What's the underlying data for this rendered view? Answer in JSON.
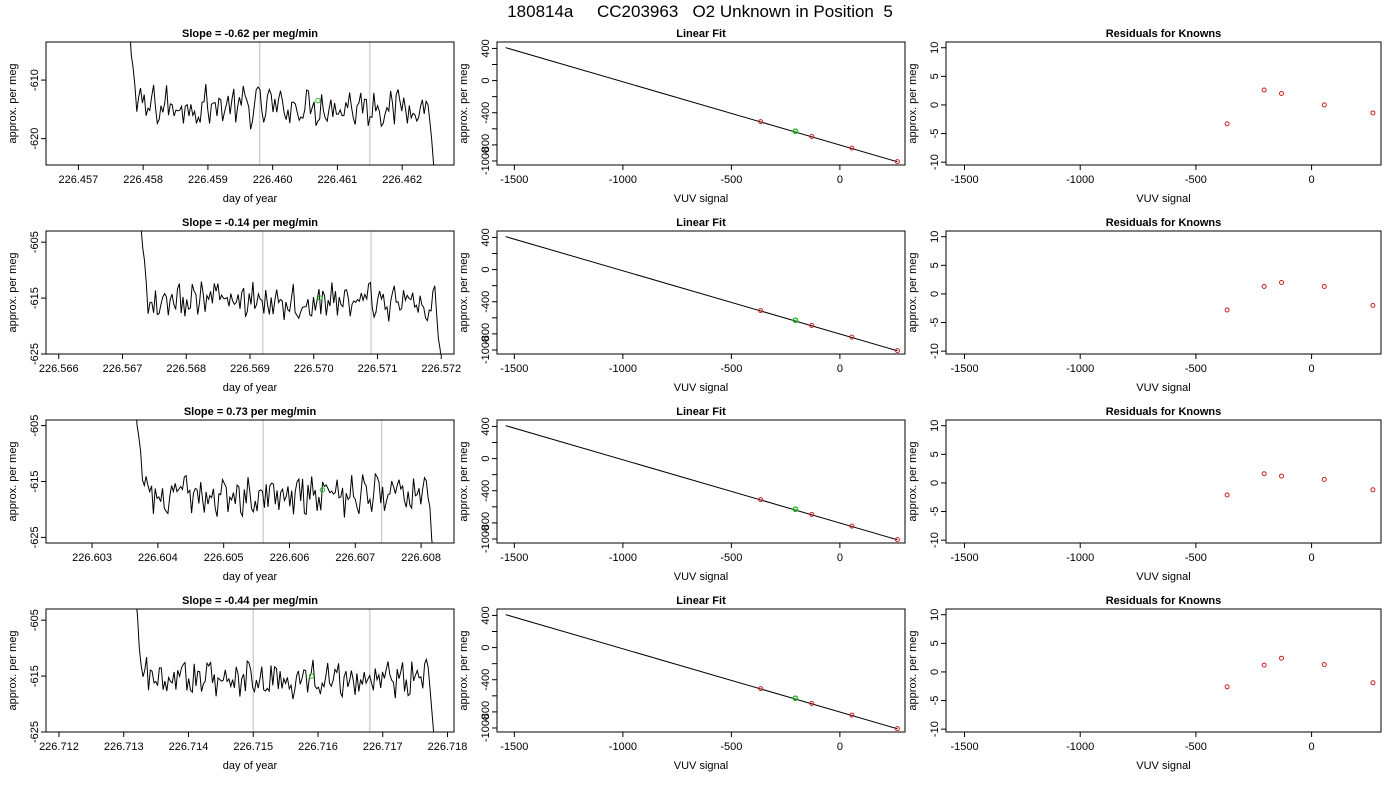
{
  "page_title": "180814a     CC203963   O2 Unknown in Position  5",
  "colors": {
    "trace": "#000000",
    "marker_line": "#c8c8c8",
    "unknown_point": "#22bb22",
    "known_point": "#cc2222",
    "fit_line": "#000000"
  },
  "chart_data": [
    {
      "type": "line",
      "title": "Slope =  -0.62  per meg/min",
      "xlabel": "day of year",
      "ylabel": "approx. per meg",
      "xlim": [
        226.4565,
        226.4628
      ],
      "ylim": [
        -624.5,
        -603.5
      ],
      "x_ticks": [
        226.457,
        226.458,
        226.459,
        226.46,
        226.461,
        226.462
      ],
      "x_tick_labels": [
        "226.457",
        "226.458",
        "226.459",
        "226.460",
        "226.461",
        "226.462"
      ],
      "y_ticks": [
        -610,
        -620
      ],
      "y_tick_labels": [
        "-610",
        "-620"
      ],
      "marker_lines": [
        226.4598,
        226.4615
      ],
      "trace_x_range": [
        226.4577,
        226.4626
      ],
      "trace_level": -614.5,
      "unknown_point": {
        "x": 226.4607,
        "y": -613.5
      }
    },
    {
      "type": "scatter",
      "title": "Linear Fit",
      "xlabel": "VUV signal",
      "ylabel": "approx. per meg",
      "xlim": [
        -1580,
        300
      ],
      "ylim": [
        -1050,
        480
      ],
      "x_ticks": [
        -1500,
        -1000,
        -500,
        0
      ],
      "x_tick_labels": [
        "-1500",
        "-1000",
        "-500",
        "0"
      ],
      "y_ticks": [
        400,
        200,
        0,
        -200,
        -400,
        -600,
        -800,
        -1000
      ],
      "y_tick_labels": [
        "400",
        "",
        "0",
        "",
        "-400",
        "",
        "-800",
        "-1000"
      ],
      "fit_line": [
        [
          -1540,
          410
        ],
        [
          265,
          -1010
        ]
      ],
      "known_points": [
        [
          -365,
          -510
        ],
        [
          -130,
          -695
        ],
        [
          55,
          -840
        ],
        [
          265,
          -1008
        ]
      ],
      "unknown_points": [
        [
          -205,
          -630
        ]
      ]
    },
    {
      "type": "scatter",
      "title": "Residuals for Knowns",
      "xlabel": "VUV signal",
      "ylabel": "approx. per meg",
      "xlim": [
        -1580,
        300
      ],
      "ylim": [
        -10.5,
        11
      ],
      "x_ticks": [
        -1500,
        -1000,
        -500,
        0
      ],
      "x_tick_labels": [
        "-1500",
        "-1000",
        "-500",
        "0"
      ],
      "y_ticks": [
        10,
        5,
        0,
        -5,
        -10
      ],
      "y_tick_labels": [
        "10",
        "5",
        "0",
        "-5",
        "-10"
      ],
      "points": [
        [
          -365,
          -3.3
        ],
        [
          -205,
          2.6
        ],
        [
          -130,
          2.0
        ],
        [
          55,
          0.0
        ],
        [
          265,
          -1.4
        ]
      ]
    },
    {
      "type": "line",
      "title": "Slope =  -0.14  per meg/min",
      "xlabel": "day of year",
      "ylabel": "approx. per meg",
      "xlim": [
        226.5658,
        226.5722
      ],
      "ylim": [
        -625,
        -603
      ],
      "x_ticks": [
        226.566,
        226.567,
        226.568,
        226.569,
        226.57,
        226.571,
        226.572
      ],
      "x_tick_labels": [
        "226.566",
        "226.567",
        "226.568",
        "226.569",
        "226.570",
        "226.571",
        "226.572"
      ],
      "y_ticks": [
        -605,
        -615,
        -625
      ],
      "y_tick_labels": [
        "-605",
        "-615",
        "-625"
      ],
      "marker_lines": [
        226.5692,
        226.5709
      ],
      "trace_x_range": [
        226.5672,
        226.5721
      ],
      "trace_level": -615.5,
      "unknown_point": {
        "x": 226.5701,
        "y": -615.0
      }
    },
    {
      "type": "scatter",
      "title": "Linear Fit",
      "xlabel": "VUV signal",
      "ylabel": "approx. per meg",
      "xlim": [
        -1580,
        300
      ],
      "ylim": [
        -1050,
        480
      ],
      "x_ticks": [
        -1500,
        -1000,
        -500,
        0
      ],
      "x_tick_labels": [
        "-1500",
        "-1000",
        "-500",
        "0"
      ],
      "y_ticks": [
        400,
        200,
        0,
        -200,
        -400,
        -600,
        -800,
        -1000
      ],
      "y_tick_labels": [
        "400",
        "",
        "0",
        "",
        "-400",
        "",
        "-800",
        "-1000"
      ],
      "fit_line": [
        [
          -1540,
          410
        ],
        [
          265,
          -1010
        ]
      ],
      "known_points": [
        [
          -365,
          -510
        ],
        [
          -130,
          -695
        ],
        [
          55,
          -840
        ],
        [
          265,
          -1008
        ]
      ],
      "unknown_points": [
        [
          -205,
          -630
        ]
      ]
    },
    {
      "type": "scatter",
      "title": "Residuals for Knowns",
      "xlabel": "VUV signal",
      "ylabel": "approx. per meg",
      "xlim": [
        -1580,
        300
      ],
      "ylim": [
        -10.5,
        11
      ],
      "x_ticks": [
        -1500,
        -1000,
        -500,
        0
      ],
      "x_tick_labels": [
        "-1500",
        "-1000",
        "-500",
        "0"
      ],
      "y_ticks": [
        10,
        5,
        0,
        -5,
        -10
      ],
      "y_tick_labels": [
        "10",
        "5",
        "0",
        "-5",
        "-10"
      ],
      "points": [
        [
          -365,
          -2.8
        ],
        [
          -205,
          1.3
        ],
        [
          -130,
          2.0
        ],
        [
          55,
          1.3
        ],
        [
          265,
          -2.0
        ]
      ]
    },
    {
      "type": "line",
      "title": "Slope =  0.73  per meg/min",
      "xlabel": "day of year",
      "ylabel": "approx. per meg",
      "xlim": [
        226.6023,
        226.6085
      ],
      "ylim": [
        -626,
        -604
      ],
      "x_ticks": [
        226.603,
        226.604,
        226.605,
        226.606,
        226.607,
        226.608
      ],
      "x_tick_labels": [
        "226.603",
        "226.604",
        "226.605",
        "226.606",
        "226.607",
        "226.608"
      ],
      "y_ticks": [
        -605,
        -615,
        -625
      ],
      "y_tick_labels": [
        "-605",
        "-615",
        "-625"
      ],
      "marker_lines": [
        226.6056,
        226.6074
      ],
      "trace_x_range": [
        226.6036,
        226.6083
      ],
      "trace_level": -617.5,
      "unknown_point": {
        "x": 226.6065,
        "y": -616.5
      }
    },
    {
      "type": "scatter",
      "title": "Linear Fit",
      "xlabel": "VUV signal",
      "ylabel": "approx. per meg",
      "xlim": [
        -1580,
        300
      ],
      "ylim": [
        -1050,
        480
      ],
      "x_ticks": [
        -1500,
        -1000,
        -500,
        0
      ],
      "x_tick_labels": [
        "-1500",
        "-1000",
        "-500",
        "0"
      ],
      "y_ticks": [
        400,
        200,
        0,
        -200,
        -400,
        -600,
        -800,
        -1000
      ],
      "y_tick_labels": [
        "400",
        "",
        "0",
        "",
        "-400",
        "",
        "-800",
        "-1000"
      ],
      "fit_line": [
        [
          -1540,
          410
        ],
        [
          265,
          -1010
        ]
      ],
      "known_points": [
        [
          -365,
          -510
        ],
        [
          -130,
          -695
        ],
        [
          55,
          -840
        ],
        [
          265,
          -1008
        ]
      ],
      "unknown_points": [
        [
          -205,
          -630
        ]
      ]
    },
    {
      "type": "scatter",
      "title": "Residuals for Knowns",
      "xlabel": "VUV signal",
      "ylabel": "approx. per meg",
      "xlim": [
        -1580,
        300
      ],
      "ylim": [
        -10.5,
        11
      ],
      "x_ticks": [
        -1500,
        -1000,
        -500,
        0
      ],
      "x_tick_labels": [
        "-1500",
        "-1000",
        "-500",
        "0"
      ],
      "y_ticks": [
        10,
        5,
        0,
        -5,
        -10
      ],
      "y_tick_labels": [
        "10",
        "5",
        "0",
        "-5",
        "-10"
      ],
      "points": [
        [
          -365,
          -2.1
        ],
        [
          -205,
          1.6
        ],
        [
          -130,
          1.2
        ],
        [
          55,
          0.6
        ],
        [
          265,
          -1.2
        ]
      ]
    },
    {
      "type": "line",
      "title": "Slope =  -0.44  per meg/min",
      "xlabel": "day of year",
      "ylabel": "approx. per meg",
      "xlim": [
        226.7118,
        226.7181
      ],
      "ylim": [
        -625,
        -603
      ],
      "x_ticks": [
        226.712,
        226.713,
        226.714,
        226.715,
        226.716,
        226.717,
        226.718
      ],
      "x_tick_labels": [
        "226.712",
        "226.713",
        "226.714",
        "226.715",
        "226.716",
        "226.717",
        "226.718"
      ],
      "y_ticks": [
        -605,
        -615,
        -625
      ],
      "y_tick_labels": [
        "-605",
        "-615",
        "-625"
      ],
      "marker_lines": [
        226.715,
        226.7168
      ],
      "trace_x_range": [
        226.7131,
        226.7179
      ],
      "trace_level": -615.5,
      "unknown_point": {
        "x": 226.7159,
        "y": -615.0
      }
    },
    {
      "type": "scatter",
      "title": "Linear Fit",
      "xlabel": "VUV signal",
      "ylabel": "approx. per meg",
      "xlim": [
        -1580,
        300
      ],
      "ylim": [
        -1050,
        480
      ],
      "x_ticks": [
        -1500,
        -1000,
        -500,
        0
      ],
      "x_tick_labels": [
        "-1500",
        "-1000",
        "-500",
        "0"
      ],
      "y_ticks": [
        400,
        200,
        0,
        -200,
        -400,
        -600,
        -800,
        -1000
      ],
      "y_tick_labels": [
        "400",
        "",
        "0",
        "",
        "-400",
        "",
        "-800",
        "-1000"
      ],
      "fit_line": [
        [
          -1540,
          410
        ],
        [
          265,
          -1010
        ]
      ],
      "known_points": [
        [
          -365,
          -510
        ],
        [
          -130,
          -695
        ],
        [
          55,
          -840
        ],
        [
          265,
          -1008
        ]
      ],
      "unknown_points": [
        [
          -205,
          -630
        ]
      ]
    },
    {
      "type": "scatter",
      "title": "Residuals for Knowns",
      "xlabel": "VUV signal",
      "ylabel": "approx. per meg",
      "xlim": [
        -1580,
        300
      ],
      "ylim": [
        -10.5,
        11
      ],
      "x_ticks": [
        -1500,
        -1000,
        -500,
        0
      ],
      "x_tick_labels": [
        "-1500",
        "-1000",
        "-500",
        "0"
      ],
      "y_ticks": [
        10,
        5,
        0,
        -5,
        -10
      ],
      "y_tick_labels": [
        "10",
        "5",
        "0",
        "-5",
        "-10"
      ],
      "points": [
        [
          -365,
          -2.6
        ],
        [
          -205,
          1.2
        ],
        [
          -130,
          2.4
        ],
        [
          55,
          1.3
        ],
        [
          265,
          -1.9
        ]
      ]
    }
  ]
}
